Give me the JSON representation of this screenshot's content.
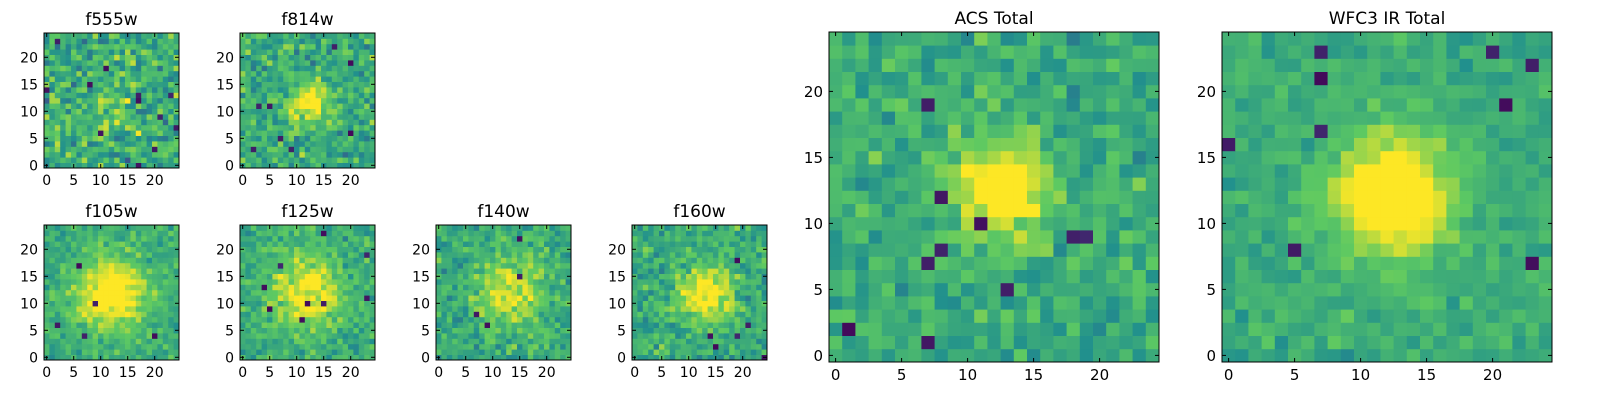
{
  "colormap": [
    "#440154",
    "#3b528b",
    "#21908d",
    "#5dc962",
    "#fde725"
  ],
  "chart_data": [
    {
      "type": "heatmap",
      "title": "f555w",
      "grid_size": 25,
      "ticks": [
        0,
        5,
        10,
        15,
        20
      ],
      "centroid": [
        12,
        12
      ],
      "peak_sigma": 3.5,
      "signal": 0.12,
      "noise": 0.75,
      "seed": 11,
      "dark_pixels": 12
    },
    {
      "type": "heatmap",
      "title": "f814w",
      "grid_size": 25,
      "ticks": [
        0,
        5,
        10,
        15,
        20
      ],
      "centroid": [
        12.5,
        11.5
      ],
      "peak_sigma": 2.5,
      "signal": 0.45,
      "noise": 0.6,
      "seed": 23,
      "dark_pixels": 8
    },
    {
      "type": "heatmap",
      "title": "f105w",
      "grid_size": 25,
      "ticks": [
        0,
        5,
        10,
        15,
        20
      ],
      "centroid": [
        12,
        12
      ],
      "peak_sigma": 4.5,
      "signal": 0.5,
      "noise": 0.4,
      "seed": 37,
      "dark_pixels": 5
    },
    {
      "type": "heatmap",
      "title": "f125w",
      "grid_size": 25,
      "ticks": [
        0,
        5,
        10,
        15,
        20
      ],
      "centroid": [
        12,
        12
      ],
      "peak_sigma": 4.5,
      "signal": 0.4,
      "noise": 0.45,
      "seed": 41,
      "dark_pixels": 9
    },
    {
      "type": "heatmap",
      "title": "f140w",
      "grid_size": 25,
      "ticks": [
        0,
        5,
        10,
        15,
        20
      ],
      "centroid": [
        13,
        12
      ],
      "peak_sigma": 4,
      "signal": 0.35,
      "noise": 0.5,
      "seed": 53,
      "dark_pixels": 4
    },
    {
      "type": "heatmap",
      "title": "f160w",
      "grid_size": 25,
      "ticks": [
        0,
        5,
        10,
        15,
        20
      ],
      "centroid": [
        13,
        12
      ],
      "peak_sigma": 3.5,
      "signal": 0.45,
      "noise": 0.5,
      "seed": 67,
      "dark_pixels": 6
    },
    {
      "type": "heatmap",
      "title": "ACS Total",
      "grid_size": 25,
      "ticks": [
        0,
        5,
        10,
        15,
        20
      ],
      "centroid": [
        12.5,
        12.5
      ],
      "peak_sigma": 2.5,
      "signal": 0.5,
      "noise": 0.45,
      "seed": 79,
      "dark_pixels": 10
    },
    {
      "type": "heatmap",
      "title": "WFC3 IR Total",
      "grid_size": 25,
      "ticks": [
        0,
        5,
        10,
        15,
        20
      ],
      "centroid": [
        12.5,
        12
      ],
      "peak_sigma": 3,
      "signal": 0.6,
      "noise": 0.3,
      "seed": 97,
      "dark_pixels": 9
    }
  ]
}
